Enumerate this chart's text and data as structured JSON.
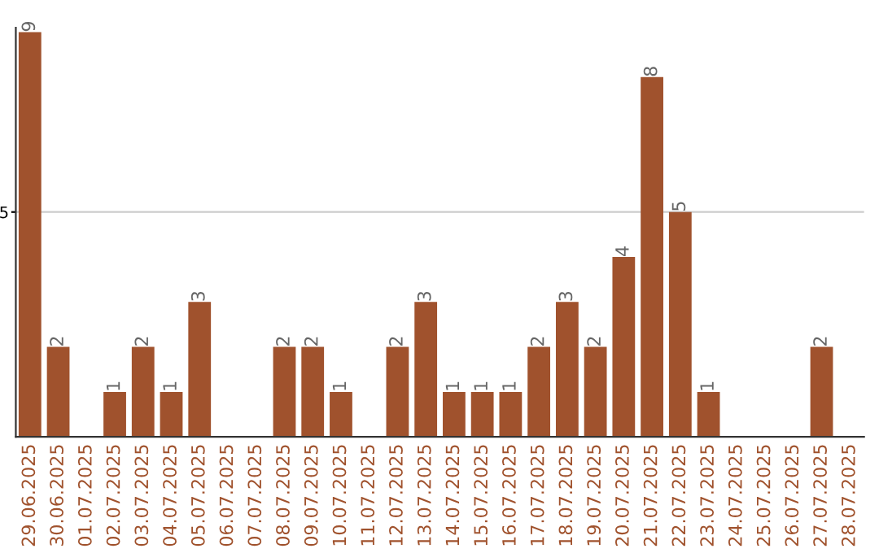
{
  "chart_data": {
    "type": "bar",
    "categories": [
      "29.06.2025",
      "30.06.2025",
      "01.07.2025",
      "02.07.2025",
      "03.07.2025",
      "04.07.2025",
      "05.07.2025",
      "06.07.2025",
      "07.07.2025",
      "08.07.2025",
      "09.07.2025",
      "10.07.2025",
      "11.07.2025",
      "12.07.2025",
      "13.07.2025",
      "14.07.2025",
      "15.07.2025",
      "16.07.2025",
      "17.07.2025",
      "18.07.2025",
      "19.07.2025",
      "20.07.2025",
      "21.07.2025",
      "22.07.2025",
      "23.07.2025",
      "24.07.2025",
      "25.07.2025",
      "26.07.2025",
      "27.07.2025",
      "28.07.2025"
    ],
    "values": [
      9,
      2,
      0,
      1,
      2,
      1,
      3,
      0,
      0,
      2,
      2,
      1,
      0,
      2,
      3,
      1,
      1,
      1,
      2,
      3,
      2,
      4,
      8,
      5,
      1,
      0,
      0,
      0,
      2,
      0
    ],
    "value_labels": [
      "9",
      "2",
      null,
      "1",
      "2",
      "1",
      "3",
      null,
      null,
      "2",
      "2",
      "1",
      null,
      "2",
      "3",
      "1",
      "1",
      "1",
      "2",
      "3",
      "2",
      "4",
      "8",
      "5",
      "1",
      null,
      null,
      null,
      "2",
      null
    ],
    "color": "#a0522d",
    "ylim": [
      0,
      9.1
    ],
    "yticks": [
      5
    ],
    "grid": "y"
  }
}
